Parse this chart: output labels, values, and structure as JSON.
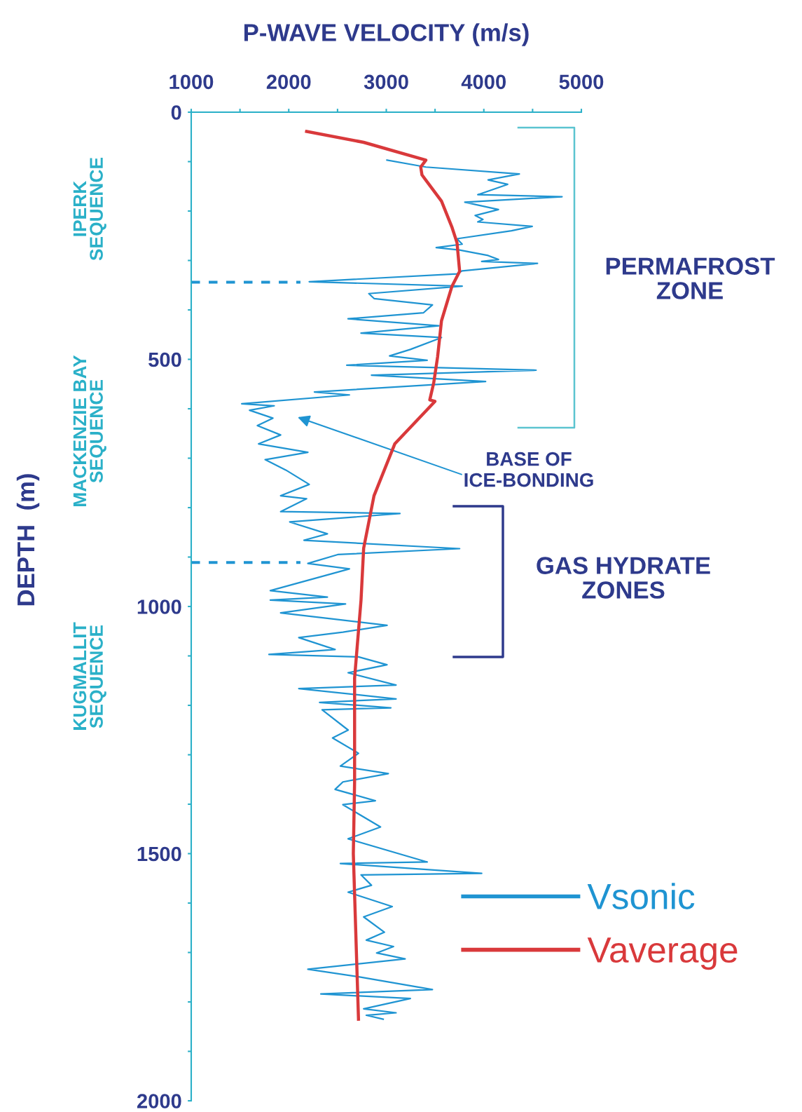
{
  "chart_data": {
    "type": "line",
    "xlabel": "P-WAVE VELOCITY (m/s)",
    "ylabel": "DEPTH  (m)",
    "xlim": [
      1000,
      5000
    ],
    "ylim": [
      2000,
      0
    ],
    "xticks": [
      1000,
      {
        "value": 1500,
        "label": null
      },
      2000,
      {
        "value": 2500,
        "label": null
      },
      3000,
      {
        "value": 3500,
        "label": null
      },
      4000,
      {
        "value": 4500,
        "label": null
      },
      5000
    ],
    "yticks": [
      0,
      {
        "value": 100,
        "label": null
      },
      {
        "value": 200,
        "label": null
      },
      {
        "value": 300,
        "label": null
      },
      {
        "value": 400,
        "label": null
      },
      500,
      {
        "value": 600,
        "label": null
      },
      {
        "value": 700,
        "label": null
      },
      {
        "value": 800,
        "label": null
      },
      {
        "value": 900,
        "label": null
      },
      1000,
      {
        "value": 1100,
        "label": null
      },
      {
        "value": 1200,
        "label": null
      },
      {
        "value": 1300,
        "label": null
      },
      {
        "value": 1400,
        "label": null
      },
      1500,
      {
        "value": 1600,
        "label": null
      },
      {
        "value": 1700,
        "label": null
      },
      {
        "value": 1800,
        "label": null
      },
      {
        "value": 1900,
        "label": null
      },
      2000
    ],
    "grid": false,
    "legend": "bottom right",
    "marker": "none",
    "series": [
      {
        "name": "Vsonic",
        "color": "#1f94d2",
        "line_style": "solid",
        "x": [
          3007,
          3406,
          4364,
          4044,
          4244,
          3938,
          4802,
          3805,
          4150,
          3911,
          3991,
          3938,
          4496,
          4284,
          3725,
          3778,
          3512,
          3752,
          4044,
          4150,
          3978,
          4550,
          3778,
          3725,
          2210,
          3778,
          2821,
          2875,
          3473,
          3380,
          2608,
          3539,
          2741,
          3566,
          3247,
          3034,
          3419,
          2595,
          4536,
          2848,
          4018,
          2263,
          2622,
          1518,
          1851,
          1598,
          1837,
          1678,
          1917,
          1691,
          2196,
          1758,
          1970,
          2210,
          1917,
          2183,
          1917,
          3140,
          2010,
          2396,
          2156,
          3752,
          2502,
          2196,
          2622,
          1811,
          2396,
          1811,
          2582,
          1917,
          2396,
          3008,
          2555,
          2103,
          2475,
          1797,
          2715,
          3007,
          2609,
          3100,
          2103,
          3100,
          2316,
          3047,
          2342,
          2609,
          2449,
          2715,
          2529,
          3021,
          2555,
          2475,
          2888,
          2555,
          2941,
          2609,
          3420,
          2529,
          3978,
          2741,
          2848,
          2609,
          3061,
          2768,
          2981,
          2795,
          3074,
          2901,
          3193,
          2196,
          2715,
          3473,
          2329,
          3247,
          2768,
          3100,
          2795,
          2968
        ],
        "values": [
          97,
          111,
          125,
          137,
          146,
          167,
          171,
          182,
          197,
          209,
          217,
          222,
          231,
          240,
          256,
          267,
          274,
          279,
          290,
          298,
          302,
          306,
          321,
          327,
          343,
          352,
          367,
          377,
          390,
          406,
          418,
          432,
          447,
          456,
          480,
          493,
          502,
          512,
          522,
          532,
          545,
          566,
          572,
          590,
          594,
          603,
          619,
          634,
          653,
          671,
          688,
          703,
          724,
          753,
          776,
          782,
          808,
          812,
          829,
          853,
          866,
          883,
          895,
          913,
          924,
          968,
          981,
          987,
          995,
          1013,
          1024,
          1038,
          1052,
          1063,
          1087,
          1097,
          1102,
          1118,
          1134,
          1159,
          1166,
          1187,
          1194,
          1205,
          1209,
          1250,
          1266,
          1297,
          1323,
          1338,
          1355,
          1370,
          1393,
          1401,
          1446,
          1470,
          1517,
          1520,
          1540,
          1543,
          1564,
          1578,
          1607,
          1628,
          1659,
          1675,
          1688,
          1701,
          1713,
          1734,
          1749,
          1775,
          1784,
          1793,
          1814,
          1822,
          1827,
          1835
        ]
      },
      {
        "name": "Vaverage",
        "color": "#d9393b",
        "line_style": "solid",
        "x": [
          2183,
          2768,
          3406,
          3353,
          3366,
          3566,
          3672,
          3725,
          3752,
          3672,
          3566,
          3526,
          3486,
          3446,
          3499,
          3087,
          2874,
          2768,
          2741,
          2675,
          2675,
          2662,
          2715
        ],
        "values": [
          39,
          61,
          97,
          111,
          127,
          180,
          232,
          264,
          322,
          353,
          422,
          495,
          548,
          582,
          585,
          671,
          776,
          882,
          987,
          1145,
          1355,
          1500,
          1835
        ]
      }
    ],
    "ref_lines": [
      {
        "axis": "y",
        "value": 344,
        "label": null,
        "color": "#1f94d2",
        "line_style": "dashed"
      },
      {
        "axis": "y",
        "value": 911,
        "label": null,
        "color": "#1f94d2",
        "line_style": "dashed"
      }
    ],
    "annotations": [
      "IPERK\nSEQUENCE",
      "MACKENZIE BAY\nSEQUENCE",
      "KUGMALLIT\nSEQUENCE",
      "BASE OF\nICE-BONDING",
      "PERMAFROST\nZONE",
      "GAS HYDRATE\nZONES"
    ]
  }
}
